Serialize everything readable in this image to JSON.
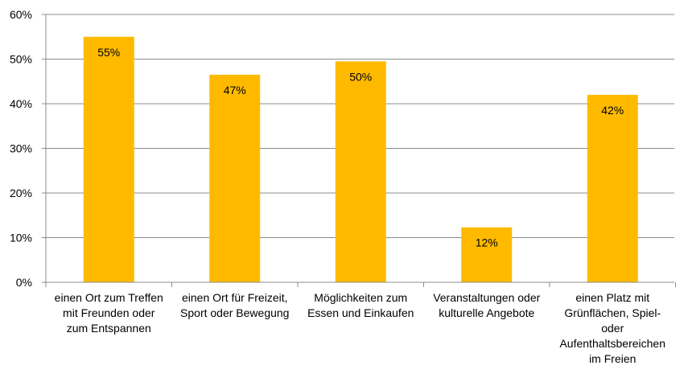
{
  "chart_data": {
    "type": "bar",
    "categories": [
      "einen Ort zum Treffen mit Freunden oder zum Entspannen",
      "einen Ort für Freizeit, Sport oder Bewegung",
      "Möglichkeiten zum Essen und Einkaufen",
      "Veranstaltungen oder kulturelle Angebote",
      "einen Platz mit Grünflächen, Spiel- oder Aufenthaltsbereichen im Freien"
    ],
    "category_lines": [
      [
        "einen Ort zum Treffen",
        "mit Freunden oder",
        "zum Entspannen"
      ],
      [
        "einen Ort für Freizeit,",
        "Sport oder Bewegung"
      ],
      [
        "Möglichkeiten zum",
        "Essen und Einkaufen"
      ],
      [
        "Veranstaltungen oder",
        "kulturelle Angebote"
      ],
      [
        "einen Platz mit",
        "Grünflächen, Spiel-",
        "oder",
        "Aufenthaltsbereichen",
        "im Freien"
      ]
    ],
    "values": [
      55,
      46.5,
      49.5,
      12.3,
      42
    ],
    "data_labels": [
      "55%",
      "47%",
      "50%",
      "12%",
      "42%"
    ],
    "ylim": [
      0,
      60
    ],
    "yticks": [
      0,
      10,
      20,
      30,
      40,
      50,
      60
    ],
    "ytick_labels": [
      "0%",
      "10%",
      "20%",
      "30%",
      "40%",
      "50%",
      "60%"
    ],
    "grid": true,
    "bar_color": "#FFBA00",
    "grid_color": "#8C8C8C",
    "title": "",
    "xlabel": "",
    "ylabel": ""
  }
}
